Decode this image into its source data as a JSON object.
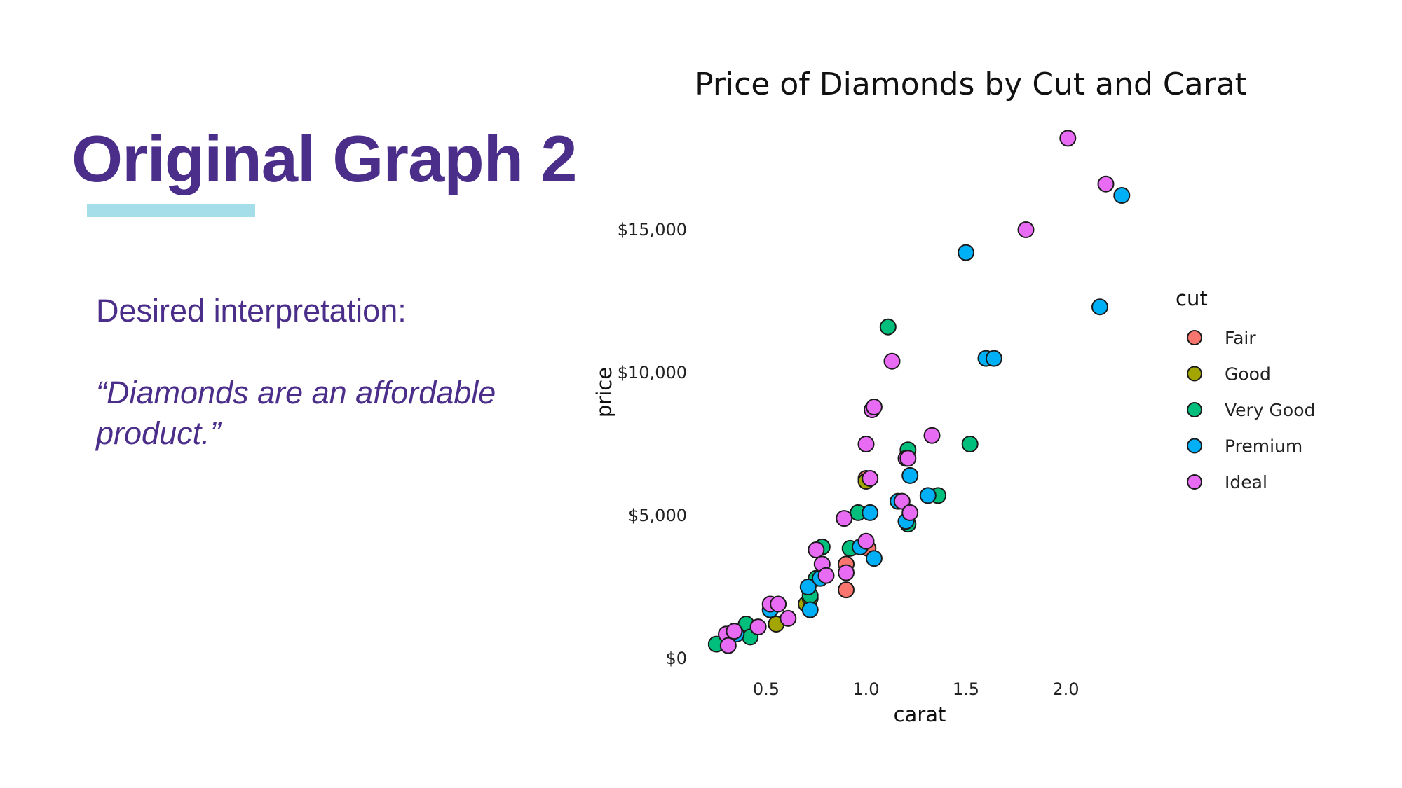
{
  "slide": {
    "title": "Original Graph 2",
    "interpretation_label": "Desired interpretation:",
    "interpretation_quote": "“Diamonds are an affordable product.”"
  },
  "colors": {
    "heading": "#4b2e8a",
    "underline": "#a5dde8"
  },
  "chart_data": {
    "type": "scatter",
    "title": "Price of Diamonds by Cut and Carat",
    "xlabel": "carat",
    "ylabel": "price",
    "xlim": [
      0.2,
      2.35
    ],
    "ylim": [
      0,
      18500
    ],
    "x_ticks": [
      {
        "value": 0.5,
        "label": "0.5"
      },
      {
        "value": 1.0,
        "label": "1.0"
      },
      {
        "value": 1.5,
        "label": "1.5"
      },
      {
        "value": 2.0,
        "label": "2.0"
      }
    ],
    "y_ticks": [
      {
        "value": 0,
        "label": "$0"
      },
      {
        "value": 5000,
        "label": "$5,000"
      },
      {
        "value": 10000,
        "label": "$10,000"
      },
      {
        "value": 15000,
        "label": "$15,000"
      }
    ],
    "grid": false,
    "legend": {
      "title": "cut",
      "position": "right"
    },
    "series": [
      {
        "name": "Fair",
        "color": "#f8766d",
        "points": [
          {
            "x": 1.0,
            "y": 6300
          },
          {
            "x": 0.9,
            "y": 3300
          },
          {
            "x": 1.01,
            "y": 3850
          },
          {
            "x": 0.9,
            "y": 2400
          }
        ]
      },
      {
        "name": "Good",
        "color": "#a3a500",
        "points": [
          {
            "x": 0.3,
            "y": 500
          },
          {
            "x": 0.55,
            "y": 1200
          },
          {
            "x": 0.7,
            "y": 1900
          },
          {
            "x": 1.0,
            "y": 6200
          },
          {
            "x": 0.72,
            "y": 2100
          }
        ]
      },
      {
        "name": "Very Good",
        "color": "#00bf7d",
        "points": [
          {
            "x": 0.25,
            "y": 500
          },
          {
            "x": 0.4,
            "y": 1200
          },
          {
            "x": 0.42,
            "y": 750
          },
          {
            "x": 0.72,
            "y": 2200
          },
          {
            "x": 0.75,
            "y": 2800
          },
          {
            "x": 0.78,
            "y": 3900
          },
          {
            "x": 0.92,
            "y": 3850
          },
          {
            "x": 0.96,
            "y": 5100
          },
          {
            "x": 1.11,
            "y": 11600
          },
          {
            "x": 1.21,
            "y": 7300
          },
          {
            "x": 1.21,
            "y": 4700
          },
          {
            "x": 1.36,
            "y": 5700
          },
          {
            "x": 1.52,
            "y": 7500
          }
        ]
      },
      {
        "name": "Premium",
        "color": "#00b0f6",
        "points": [
          {
            "x": 0.35,
            "y": 850
          },
          {
            "x": 0.52,
            "y": 1700
          },
          {
            "x": 0.71,
            "y": 2500
          },
          {
            "x": 0.72,
            "y": 1700
          },
          {
            "x": 0.77,
            "y": 2800
          },
          {
            "x": 0.97,
            "y": 3900
          },
          {
            "x": 1.02,
            "y": 5100
          },
          {
            "x": 1.04,
            "y": 3500
          },
          {
            "x": 1.16,
            "y": 5500
          },
          {
            "x": 1.2,
            "y": 4800
          },
          {
            "x": 1.22,
            "y": 6400
          },
          {
            "x": 1.31,
            "y": 5700
          },
          {
            "x": 1.5,
            "y": 14200
          },
          {
            "x": 1.6,
            "y": 10500
          },
          {
            "x": 1.64,
            "y": 10500
          },
          {
            "x": 2.17,
            "y": 12300
          },
          {
            "x": 2.28,
            "y": 16200
          }
        ]
      },
      {
        "name": "Ideal",
        "color": "#e76bf3",
        "points": [
          {
            "x": 0.3,
            "y": 850
          },
          {
            "x": 0.31,
            "y": 450
          },
          {
            "x": 0.34,
            "y": 950
          },
          {
            "x": 0.46,
            "y": 1100
          },
          {
            "x": 0.52,
            "y": 1900
          },
          {
            "x": 0.56,
            "y": 1900
          },
          {
            "x": 0.61,
            "y": 1400
          },
          {
            "x": 0.75,
            "y": 3800
          },
          {
            "x": 0.78,
            "y": 3300
          },
          {
            "x": 0.8,
            "y": 2900
          },
          {
            "x": 0.89,
            "y": 4900
          },
          {
            "x": 0.9,
            "y": 3000
          },
          {
            "x": 1.0,
            "y": 7500
          },
          {
            "x": 1.0,
            "y": 4100
          },
          {
            "x": 1.02,
            "y": 6300
          },
          {
            "x": 1.03,
            "y": 8700
          },
          {
            "x": 1.04,
            "y": 8800
          },
          {
            "x": 1.13,
            "y": 10400
          },
          {
            "x": 1.18,
            "y": 5500
          },
          {
            "x": 1.2,
            "y": 7000
          },
          {
            "x": 1.21,
            "y": 7000
          },
          {
            "x": 1.22,
            "y": 5100
          },
          {
            "x": 1.33,
            "y": 7800
          },
          {
            "x": 1.8,
            "y": 15000
          },
          {
            "x": 2.01,
            "y": 18200
          },
          {
            "x": 2.2,
            "y": 16600
          }
        ]
      }
    ]
  }
}
